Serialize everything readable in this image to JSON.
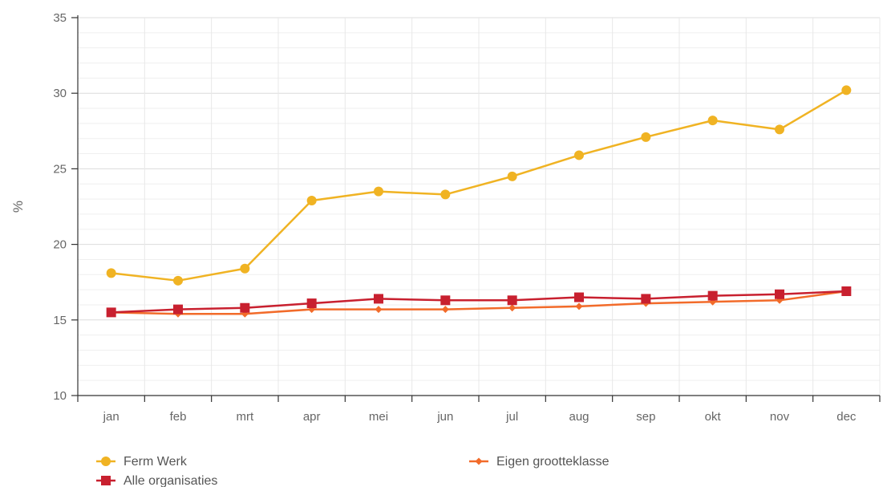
{
  "chart_data": {
    "type": "line",
    "title": "",
    "xlabel": "",
    "ylabel": "%",
    "ylim": [
      10,
      35
    ],
    "yticks": [
      10,
      15,
      20,
      25,
      30,
      35
    ],
    "grid": true,
    "legend_position": "bottom",
    "categories": [
      "jan",
      "feb",
      "mrt",
      "apr",
      "mei",
      "jun",
      "jul",
      "aug",
      "sep",
      "okt",
      "nov",
      "dec"
    ],
    "series": [
      {
        "name": "Ferm Werk",
        "color": "#f0b323",
        "marker": "circle",
        "values": [
          18.1,
          17.6,
          18.4,
          22.9,
          23.5,
          23.3,
          24.5,
          25.9,
          27.1,
          28.2,
          27.6,
          30.2
        ]
      },
      {
        "name": "Eigen grootteklasse",
        "color": "#f26b2a",
        "marker": "diamond",
        "values": [
          15.5,
          15.4,
          15.4,
          15.7,
          15.7,
          15.7,
          15.8,
          15.9,
          16.1,
          16.2,
          16.3,
          16.9
        ]
      },
      {
        "name": "Alle organisaties",
        "color": "#c8202f",
        "marker": "square",
        "values": [
          15.5,
          15.7,
          15.8,
          16.1,
          16.4,
          16.3,
          16.3,
          16.5,
          16.4,
          16.6,
          16.7,
          16.9
        ]
      }
    ]
  }
}
